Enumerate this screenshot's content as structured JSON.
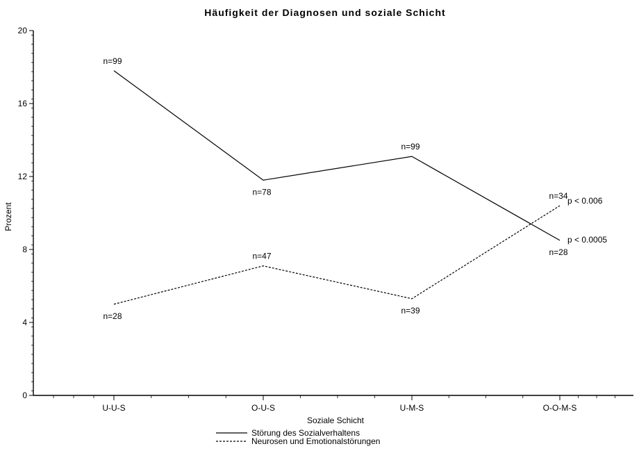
{
  "chart_data": {
    "type": "line",
    "title": "Häufigkeit der Diagnosen und soziale Schicht",
    "xlabel": "Soziale Schicht",
    "ylabel": "Prozent",
    "categories": [
      "U-U-S",
      "O-U-S",
      "U-M-S",
      "O-O-M-S"
    ],
    "yticks": [
      0,
      4,
      8,
      12,
      16,
      20
    ],
    "ylim": [
      0,
      20
    ],
    "grid": false,
    "legend_position": "bottom",
    "series": [
      {
        "name": "Störung des Sozialverhaltens",
        "values": [
          17.8,
          11.8,
          13.1,
          8.5
        ],
        "labels": [
          "n=99",
          "n=78",
          "n=99",
          "n=28"
        ],
        "label_side": [
          "above",
          "below",
          "above",
          "below"
        ],
        "line": "solid",
        "significance": "p < 0.0005"
      },
      {
        "name": "Neurosen und Emotionalstörungen",
        "values": [
          5.0,
          7.1,
          5.3,
          10.4
        ],
        "labels": [
          "n=28",
          "n=47",
          "n=39",
          "n=34"
        ],
        "label_side": [
          "below",
          "above",
          "below",
          "above"
        ],
        "line": "dashed",
        "significance": "p < 0.006"
      }
    ]
  }
}
